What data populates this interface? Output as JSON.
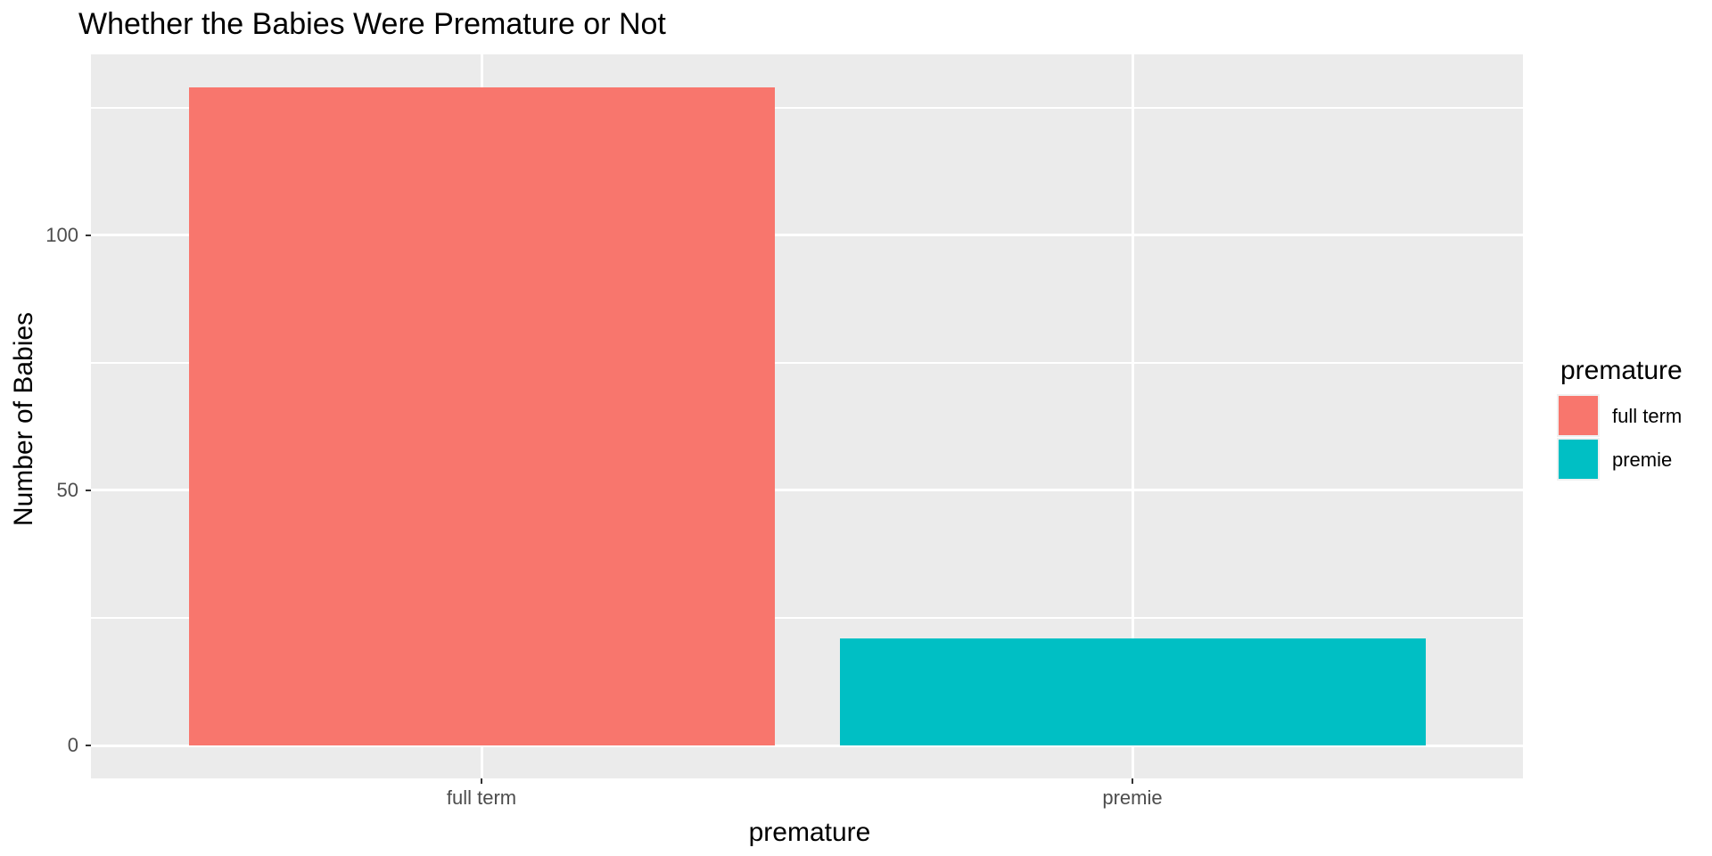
{
  "chart_data": {
    "type": "bar",
    "title": "Whether the Babies Were Premature or Not",
    "xlabel": "premature",
    "ylabel": "Number of Babies",
    "categories": [
      "full term",
      "premie"
    ],
    "values": [
      129,
      21
    ],
    "colors": [
      "#F8766D",
      "#00BFC4"
    ],
    "y_major_ticks": [
      0,
      50,
      100
    ],
    "y_minor_ticks": [
      25,
      75,
      125
    ],
    "ylim": [
      -6.45,
      135.45
    ],
    "ylim_expansion": 0.05,
    "bar_width_fraction": 0.9,
    "grid": true,
    "legend": {
      "title": "premature",
      "position": "right",
      "items": [
        {
          "label": "full term",
          "color": "#F8766D"
        },
        {
          "label": "premie",
          "color": "#00BFC4"
        }
      ]
    }
  },
  "style": {
    "panel_bg": "#EBEBEB",
    "grid_color": "#FFFFFF",
    "tick_label_color": "#4D4D4D",
    "tick_mark_color": "#333333",
    "title_color": "#000000",
    "axis_title_color": "#000000",
    "legend_key_bg": "#F0F0F0",
    "background": "#FFFFFF"
  }
}
